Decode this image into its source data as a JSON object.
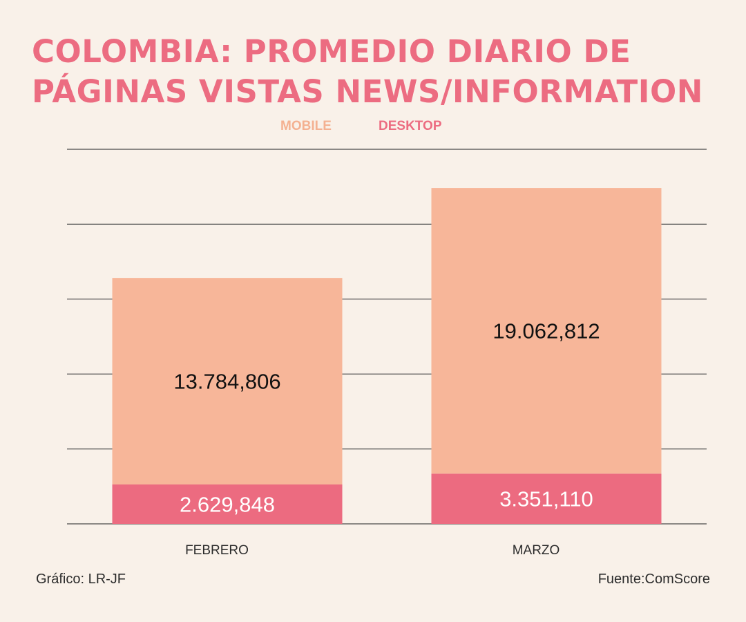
{
  "title": {
    "line1": "COLOMBIA: PROMEDIO DIARIO DE",
    "line2": "PÁGINAS VISTAS NEWS/INFORMATION"
  },
  "legend": {
    "mobile": "MOBILE",
    "desktop": "DESKTOP"
  },
  "colors": {
    "mobile": "#f7b699",
    "desktop": "#ec6b80",
    "title": "#ec6c81",
    "gridline": "#4a4a4a",
    "background": "#f9f1e9"
  },
  "chart_data": {
    "type": "bar",
    "stacked": true,
    "title": "COLOMBIA: PROMEDIO DIARIO DE PÁGINAS VISTAS NEWS/INFORMATION",
    "categories": [
      "FEBRERO",
      "MARZO"
    ],
    "series": [
      {
        "name": "DESKTOP",
        "values": [
          2629848,
          3351110
        ],
        "labels": [
          "2.629,848",
          "3.351,110"
        ]
      },
      {
        "name": "MOBILE",
        "values": [
          13784806,
          19062812
        ],
        "labels": [
          "13.784,806",
          "19.062,812"
        ]
      }
    ],
    "ylim": [
      0,
      25000000
    ],
    "grid": true,
    "gridlines": 6,
    "legend_position": "top-center",
    "xlabel": "",
    "ylabel": ""
  },
  "footer": {
    "credit": "Gráfico: LR-JF",
    "source": "Fuente:ComScore"
  }
}
